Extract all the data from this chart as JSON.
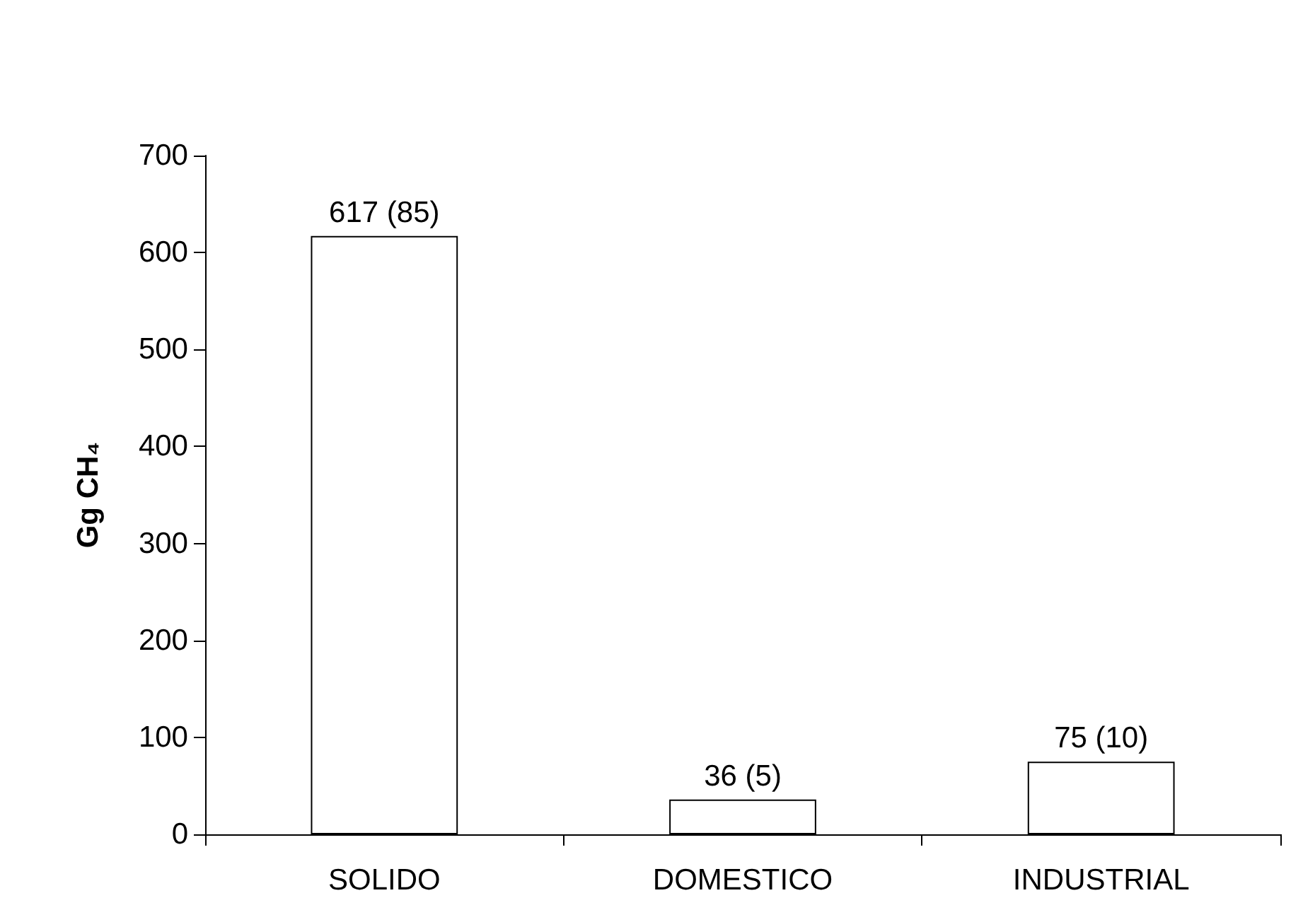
{
  "chart_data": {
    "type": "bar",
    "categories": [
      "SOLIDO",
      "DOMESTICO",
      "INDUSTRIAL"
    ],
    "values": [
      617,
      36,
      75
    ],
    "value_labels": [
      "617 (85)",
      "36 (5)",
      "75 (10)"
    ],
    "color": "#ffffff",
    "ylabel": "Gg CH₄",
    "ylim": [
      0,
      700
    ],
    "yticks": [
      0,
      100,
      200,
      300,
      400,
      500,
      600,
      700
    ]
  }
}
